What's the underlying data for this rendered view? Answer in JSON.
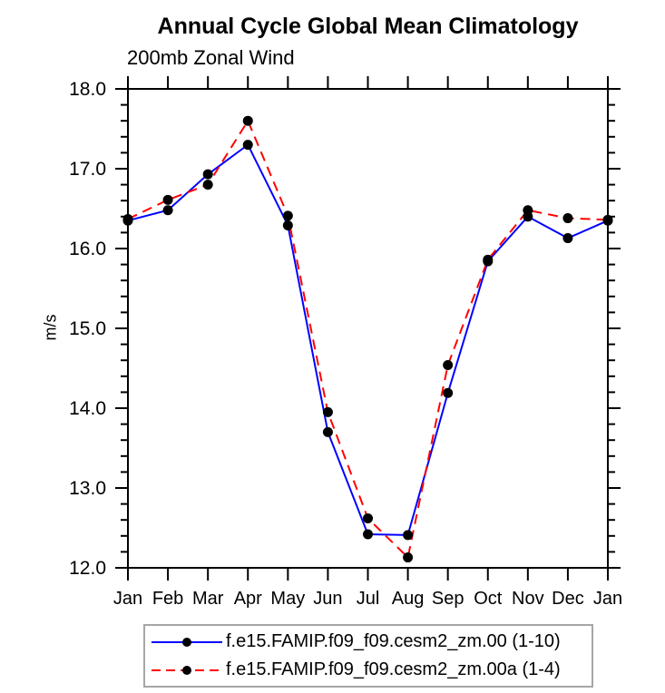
{
  "chart_data": {
    "type": "line",
    "title": "Annual Cycle Global Mean Climatology",
    "subtitle": "200mb Zonal Wind",
    "xlabel": "",
    "ylabel": "m/s",
    "categories": [
      "Jan",
      "Feb",
      "Mar",
      "Apr",
      "May",
      "Jun",
      "Jul",
      "Aug",
      "Sep",
      "Oct",
      "Nov",
      "Dec",
      "Jan"
    ],
    "ylim": [
      12.0,
      18.0
    ],
    "ytick_major": 1.0,
    "ytick_minor": 0.2,
    "ytick_labels": [
      "12.0",
      "13.0",
      "14.0",
      "15.0",
      "16.0",
      "17.0",
      "18.0"
    ],
    "grid": false,
    "legend_position": "bottom",
    "axis_color": "#000000",
    "marker_color": "#000000",
    "legend_border_color": "#a6a6a6",
    "series": [
      {
        "name": "f.e15.FAMIP.f09_f09.cesm2_zm.00 (1-10)",
        "color": "#0000ff",
        "line_style": "solid",
        "marker": "filled-circle",
        "values": [
          16.35,
          16.48,
          16.93,
          17.3,
          16.29,
          13.7,
          12.42,
          12.41,
          14.19,
          15.84,
          16.4,
          16.13,
          16.35
        ]
      },
      {
        "name": "f.e15.FAMIP.f09_f09.cesm2_zm.00a (1-4)",
        "color": "#ff0000",
        "line_style": "dashed",
        "marker": "filled-circle",
        "values": [
          16.37,
          16.61,
          16.8,
          17.6,
          16.41,
          13.95,
          12.62,
          12.13,
          14.54,
          15.86,
          16.48,
          16.38,
          16.36
        ]
      }
    ]
  }
}
